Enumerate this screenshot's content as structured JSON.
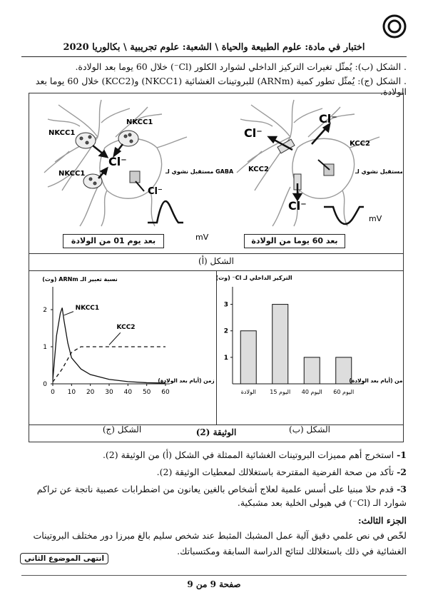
{
  "header": {
    "text": "اختبار في مادة: علوم الطبيعة والحياة \\ الشعبة: علوم تجريبية \\ بكالوريا 2020"
  },
  "intro": {
    "line_b": ". الشكل (ب): يُمثّل تغيرات التركيز الداخلي لشوارد الكلور (Cl⁻) خلال 60 يوما بعد الولادة.",
    "line_c": ". الشكل (ج): يُمثّل تطور كمية (ARNm) للبروتينات الغشائية (NKCC1) و(KCC2) خلال 60 يوما بعد الولادة."
  },
  "figure_a": {
    "caption": "الشكل (أ)",
    "left_panel": {
      "label": "بعد يوم 01 من الولادة",
      "transporter1": "NKCC1",
      "transporter2": "NKCC1",
      "ion": "Cl⁻",
      "receptor": "مستقبل نشوي لـ GABA",
      "unit": "mV"
    },
    "right_panel": {
      "label": "بعد 60 يوما من الولادة",
      "transporter1": "KCC2",
      "transporter2": "KCC2",
      "ion": "Cl⁻",
      "receptor": "مستقبل نشوي لـ GABA",
      "unit": "mV"
    }
  },
  "chart_data": [
    {
      "id": "figure_c",
      "type": "line",
      "caption": "الشكل (ج)",
      "ylabel": "نسبة تعبير الـ ARNm (وت)",
      "xlabel": "الزمن (أيام بعد الولادة)",
      "x_ticks": [
        0,
        10,
        20,
        30,
        40,
        50,
        60
      ],
      "y_ticks": [
        0,
        1,
        2
      ],
      "xlim": [
        0,
        60
      ],
      "ylim": [
        0,
        2.5
      ],
      "series": [
        {
          "name": "NKCC1",
          "style": "solid",
          "x": [
            0,
            2,
            4,
            5,
            6,
            8,
            10,
            15,
            20,
            30,
            40,
            50,
            60
          ],
          "y": [
            0.1,
            1.3,
            1.9,
            2.05,
            1.7,
            1.1,
            0.7,
            0.4,
            0.25,
            0.12,
            0.06,
            0.03,
            0.02
          ]
        },
        {
          "name": "KCC2",
          "style": "dashed",
          "x": [
            0,
            5,
            10,
            15,
            20,
            30,
            40,
            50,
            60
          ],
          "y": [
            0.05,
            0.4,
            0.85,
            1.0,
            1.0,
            1.0,
            1.0,
            1.0,
            1.0
          ]
        }
      ]
    },
    {
      "id": "figure_b",
      "type": "bar",
      "caption": "الشكل (ب)",
      "ylabel": "التركيز الداخلي لـ Cl⁻ (وت)",
      "xlabel": "الزمن (أيام بعد الولادة)",
      "categories": [
        "الولادة",
        "اليوم 15",
        "اليوم 40",
        "اليوم 60"
      ],
      "values": [
        2,
        3,
        1,
        1
      ],
      "y_ticks": [
        1,
        2,
        3
      ],
      "ylim": [
        0,
        3.5
      ]
    }
  ],
  "document": {
    "title": "الوثيقة (2)"
  },
  "questions": [
    {
      "num": "1-",
      "text": "استخرج أهم مميزات البروتينات الغشائية الممثلة في الشكل (أ) من الوثيقة (2)."
    },
    {
      "num": "2-",
      "text": "تأكد من صحة الفرضية المقترحة باستغلالك لمعطيات الوثيقة (2)."
    },
    {
      "num": "3-",
      "text": "قدم حلا مبنيا على أسس علمية لعلاج أشخاص بالغين يعانون من اضطرابات عصبية ناتجة عن تراكم شوارد الـ (Cl⁻) في هيولى الخلية بعد مشبكية."
    }
  ],
  "part3": {
    "title": "الجزء الثالث:",
    "text": "لخّص في نص علمي دقيق آلية عمل المشبك المثبط عند شخص سليم بالغ مبرزا دور مختلف البروتينات الغشائية في ذلك باستغلالك لنتائج الدراسة السابقة ومكتسباتك."
  },
  "end_label": "انتهى الموضوع الثاني",
  "footer": {
    "page": "صفحة 9 من 9"
  }
}
